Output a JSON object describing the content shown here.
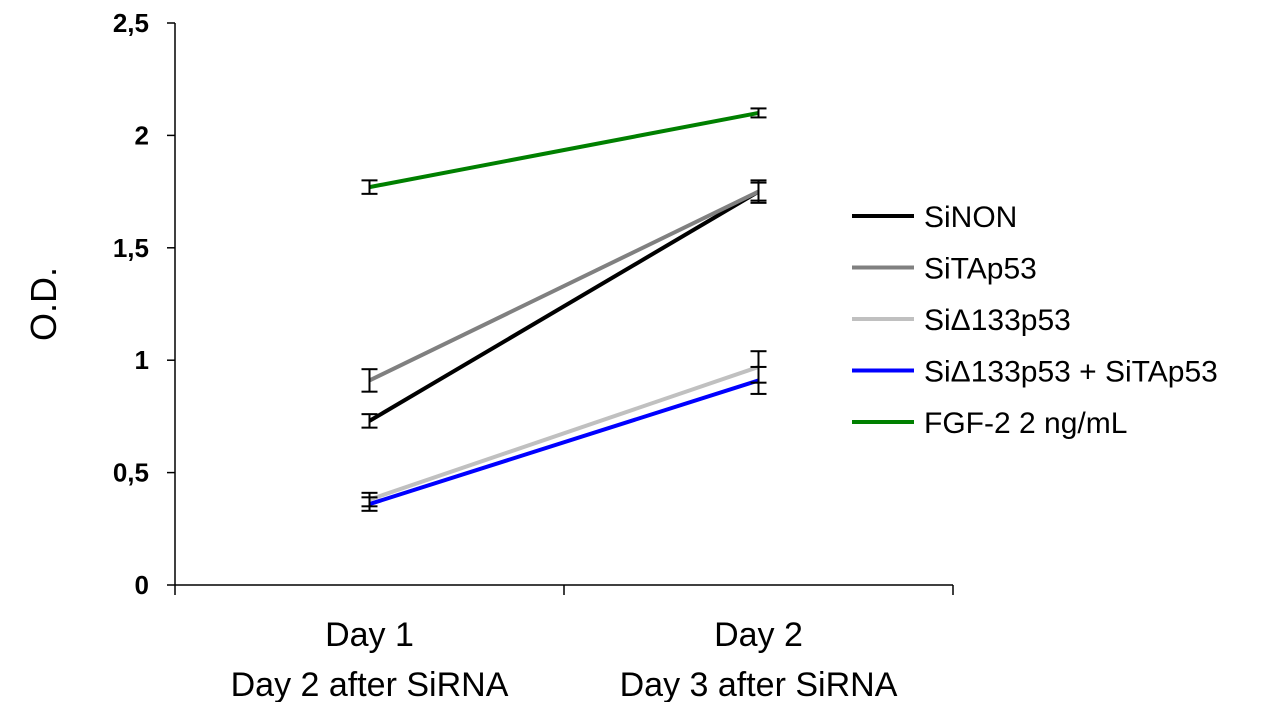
{
  "chart_data": {
    "type": "line",
    "title": "",
    "ylabel": "O.D.",
    "xlabel": "",
    "ylim": [
      0,
      2.5
    ],
    "yticks": [
      "0",
      "0,5",
      "1",
      "1,5",
      "2",
      "2,5"
    ],
    "ytick_values": [
      0,
      0.5,
      1,
      1.5,
      2,
      2.5
    ],
    "categories": [
      [
        "Day 1",
        "Day 2 after SiRNA"
      ],
      [
        "Day 2",
        "Day 3 after SiRNA"
      ]
    ],
    "grid": false,
    "legend_position": "right",
    "series": [
      {
        "name": "SiNON",
        "color": "#000000",
        "values": [
          0.73,
          1.75
        ],
        "errors": [
          0.03,
          0.05
        ]
      },
      {
        "name": "SiTAp53",
        "color": "#808080",
        "values": [
          0.91,
          1.75
        ],
        "errors": [
          0.05,
          0.04
        ]
      },
      {
        "name": "SiΔ133p53",
        "color": "#c0c0c0",
        "values": [
          0.38,
          0.97
        ],
        "errors": [
          0.03,
          0.07
        ]
      },
      {
        "name": "SiΔ133p53 + SiTAp53",
        "color": "#0000ff",
        "values": [
          0.36,
          0.91
        ],
        "errors": [
          0.03,
          0.06
        ]
      },
      {
        "name": "FGF-2 2 ng/mL",
        "color": "#008000",
        "values": [
          1.77,
          2.1
        ],
        "errors": [
          0.03,
          0.02
        ]
      }
    ]
  }
}
